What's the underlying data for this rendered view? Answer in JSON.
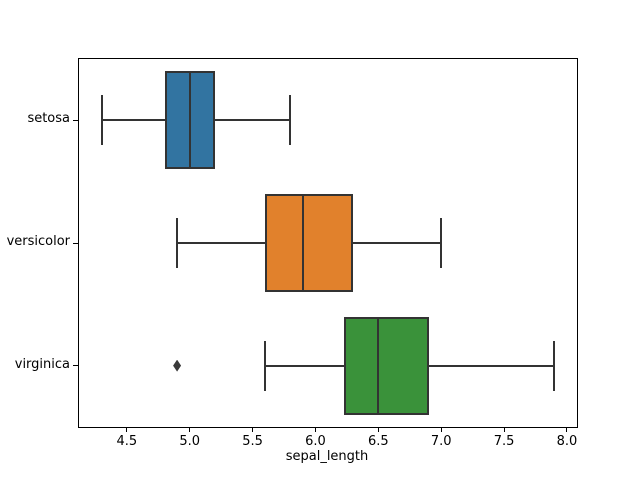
{
  "chart_data": {
    "type": "boxplot",
    "orientation": "horizontal",
    "title": "",
    "xlabel": "sepal_length",
    "ylabel": "",
    "categories": [
      "setosa",
      "versicolor",
      "virginica"
    ],
    "xlim": [
      4.12,
      8.08
    ],
    "x_ticks": [
      4.5,
      5.0,
      5.5,
      6.0,
      6.5,
      7.0,
      7.5,
      8.0
    ],
    "x_tick_labels": [
      "4.5",
      "5.0",
      "5.5",
      "6.0",
      "6.5",
      "7.0",
      "7.5",
      "8.0"
    ],
    "grid": false,
    "legend": null,
    "series": [
      {
        "category": "setosa",
        "whisker_low": 4.3,
        "q1": 4.8,
        "median": 5.0,
        "q3": 5.2,
        "whisker_high": 5.8,
        "outliers": [],
        "box_color": "#3274A1"
      },
      {
        "category": "versicolor",
        "whisker_low": 4.9,
        "q1": 5.6,
        "median": 5.9,
        "q3": 6.3,
        "whisker_high": 7.0,
        "outliers": [],
        "box_color": "#E1812C"
      },
      {
        "category": "virginica",
        "whisker_low": 5.6,
        "q1": 6.225,
        "median": 6.5,
        "q3": 6.9,
        "whisker_high": 7.9,
        "outliers": [
          4.9
        ],
        "box_color": "#3A923A"
      }
    ],
    "line_color": "#333333",
    "outlier_color": "#3a3a3a",
    "spine_color": "#000000"
  }
}
